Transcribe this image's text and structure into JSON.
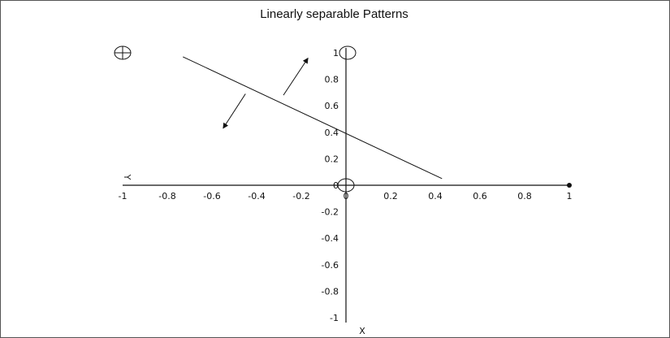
{
  "chart_data": {
    "type": "scatter",
    "title": "Linearly separable Patterns",
    "xlabel": "X",
    "ylabel": "Y",
    "xlim": [
      -1,
      1
    ],
    "ylim": [
      -1,
      1
    ],
    "x_ticks": [
      "-1",
      "-0.8",
      "-0.6",
      "-0.4",
      "-0.2",
      "0",
      "0.2",
      "0.4",
      "0.6",
      "0.8",
      "1"
    ],
    "y_ticks": [
      "1",
      "0.8",
      "0.6",
      "0.4",
      "0.2",
      "0",
      "-0.2",
      "-0.4",
      "-0.6",
      "-0.8",
      "-1"
    ],
    "grid": false,
    "points": [
      {
        "x": -1,
        "y": 1,
        "marker": "circle-plus"
      },
      {
        "x": 0,
        "y": 1,
        "marker": "circle"
      },
      {
        "x": 0,
        "y": 0,
        "marker": "circle-plus"
      },
      {
        "x": 1,
        "y": 0,
        "marker": "dot"
      }
    ],
    "boundary_line": {
      "x": [
        -0.73,
        0.43
      ],
      "y": [
        0.97,
        0.05
      ]
    },
    "annotations": [
      {
        "type": "arrow",
        "from": [
          -0.28,
          0.68
        ],
        "to": [
          -0.17,
          0.96
        ]
      },
      {
        "type": "arrow",
        "from": [
          -0.45,
          0.69
        ],
        "to": [
          -0.55,
          0.43
        ]
      }
    ]
  },
  "colors": {
    "ink": "#111111",
    "frame": "#555555"
  }
}
